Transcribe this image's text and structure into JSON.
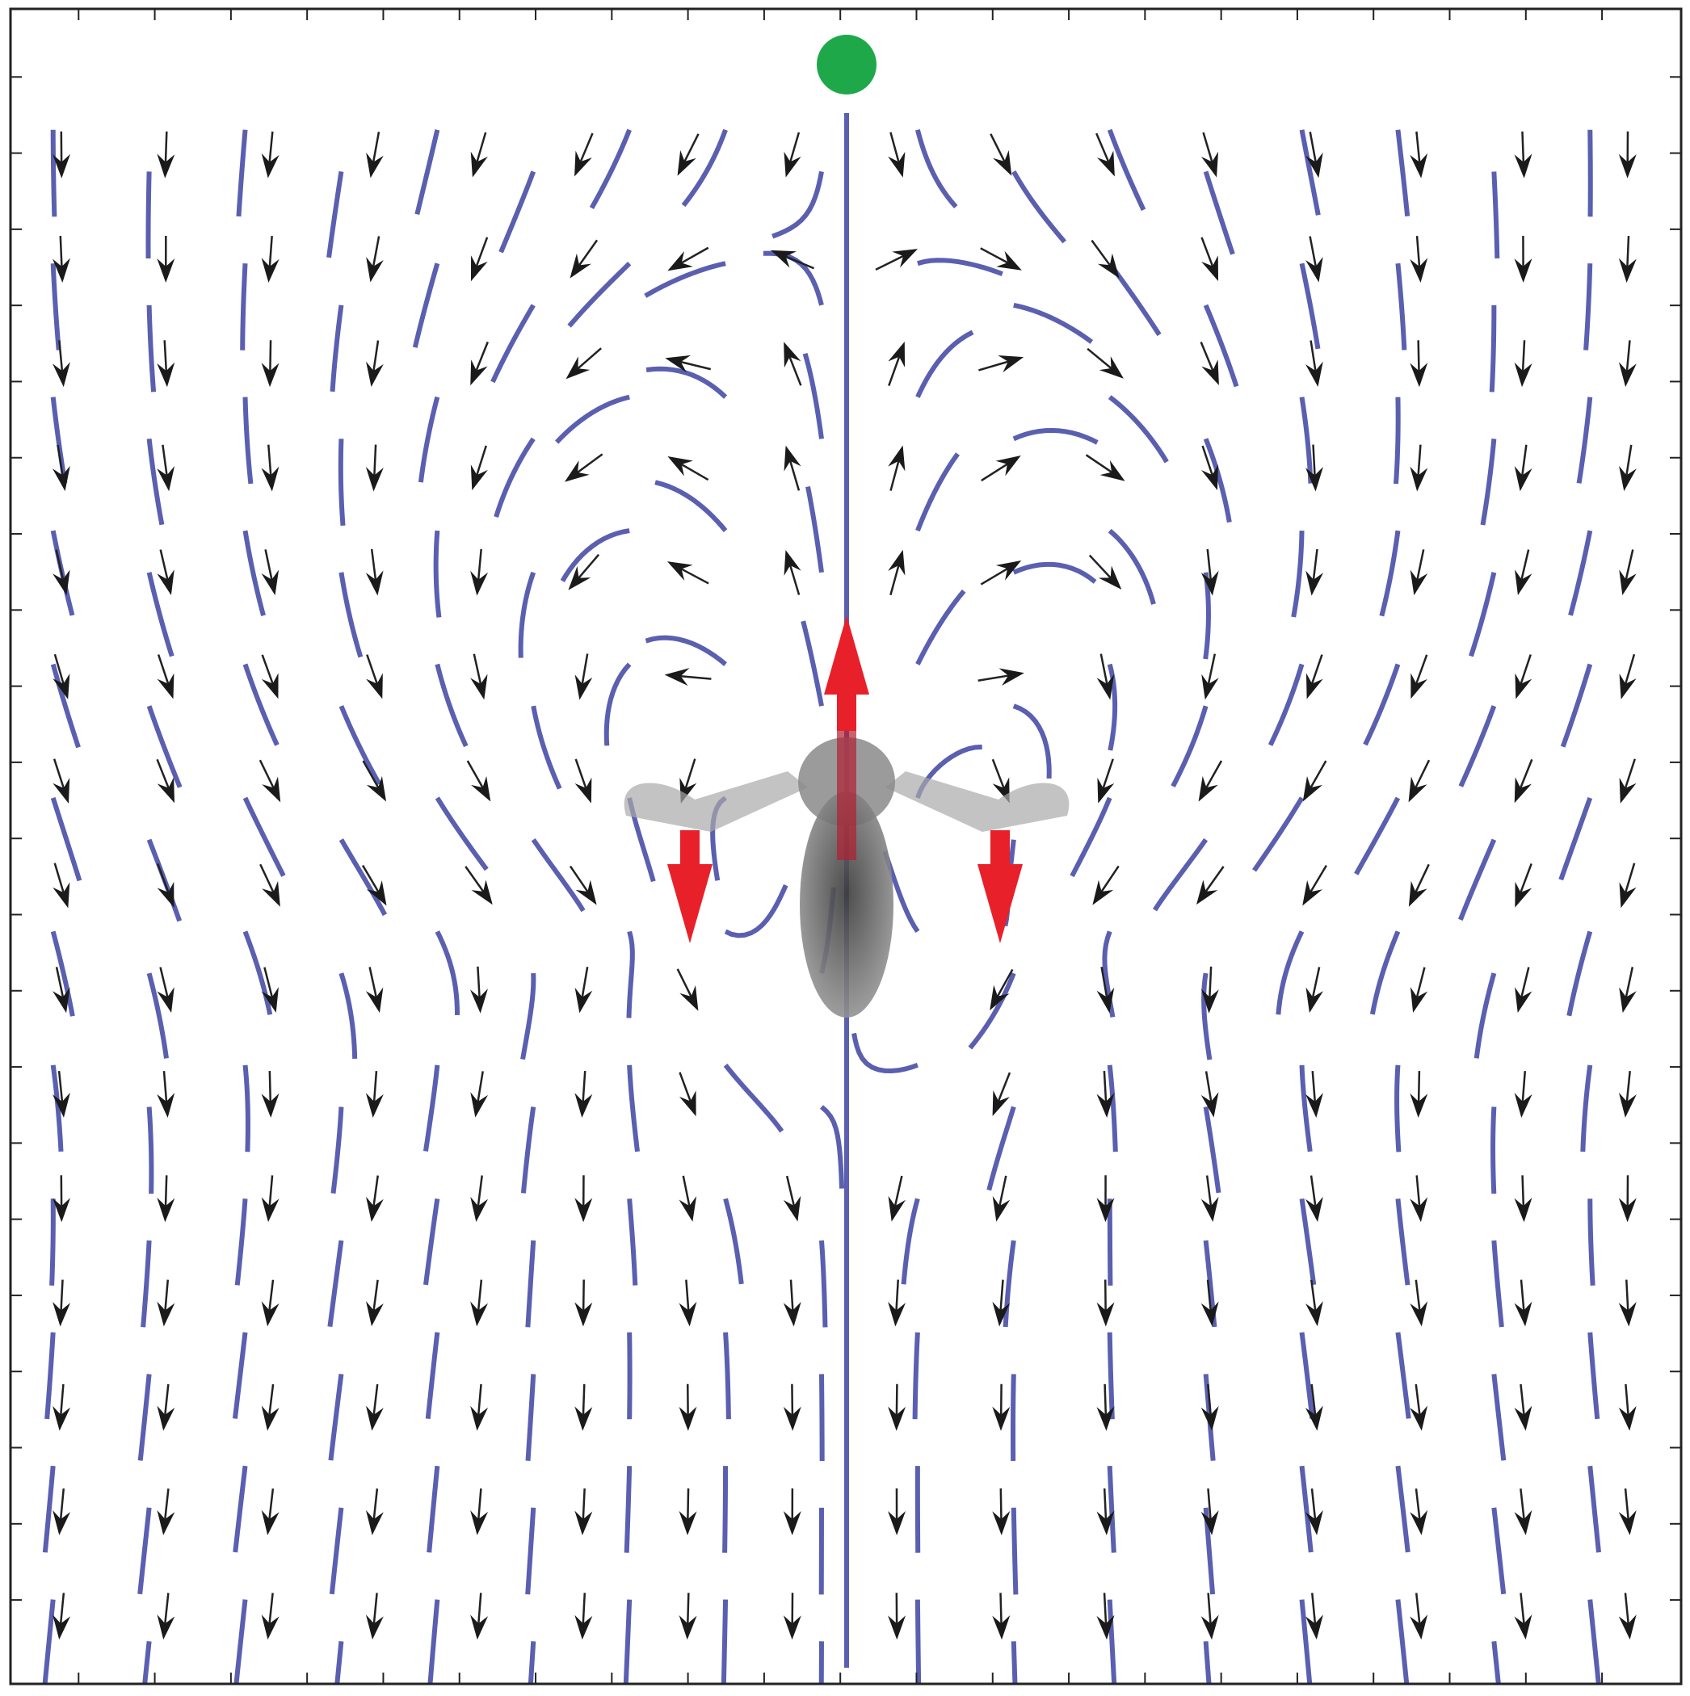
{
  "chart_data": {
    "type": "quiver"
  }
}
